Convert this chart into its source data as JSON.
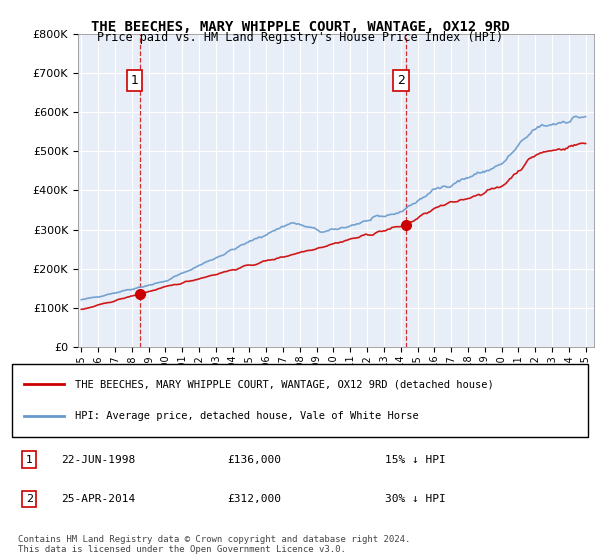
{
  "title": "THE BEECHES, MARY WHIPPLE COURT, WANTAGE, OX12 9RD",
  "subtitle": "Price paid vs. HM Land Registry's House Price Index (HPI)",
  "legend_line1": "THE BEECHES, MARY WHIPPLE COURT, WANTAGE, OX12 9RD (detached house)",
  "legend_line2": "HPI: Average price, detached house, Vale of White Horse",
  "footnote": "Contains HM Land Registry data © Crown copyright and database right 2024.\nThis data is licensed under the Open Government Licence v3.0.",
  "annotation1_label": "1",
  "annotation1_date": "22-JUN-1998",
  "annotation1_price": "£136,000",
  "annotation1_hpi": "15% ↓ HPI",
  "annotation2_label": "2",
  "annotation2_date": "25-APR-2014",
  "annotation2_price": "£312,000",
  "annotation2_hpi": "30% ↓ HPI",
  "sale1_year": 1998.47,
  "sale1_price": 136000,
  "sale2_year": 2014.31,
  "sale2_price": 312000,
  "red_color": "#cc0000",
  "blue_color": "#6699cc",
  "background_color": "#e8eef7",
  "ylim": [
    0,
    800000
  ],
  "xlim_start": 1995,
  "xlim_end": 2025.5
}
